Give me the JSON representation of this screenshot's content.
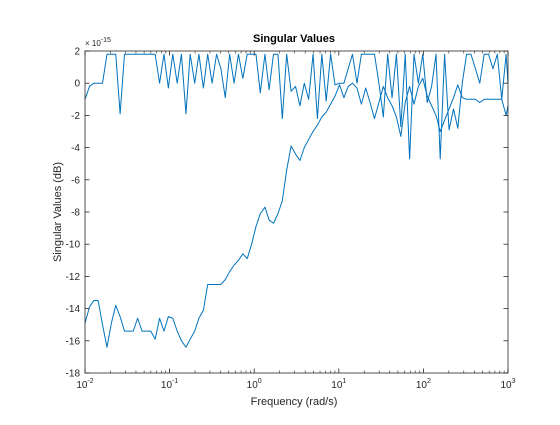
{
  "chart_data": {
    "type": "line",
    "title": "Singular Values",
    "xlabel": "Frequency (rad/s)",
    "ylabel": "Singular Values (dB)",
    "x_scale": "log",
    "xlim": [
      0.01,
      1000
    ],
    "ylim": [
      -18,
      2
    ],
    "y_multiplier_label": "× 10",
    "y_multiplier_exponent": "-15",
    "x_ticks": [
      0.01,
      0.1,
      1,
      10,
      100,
      1000
    ],
    "x_tick_labels": [
      {
        "base": "10",
        "exp": "-2"
      },
      {
        "base": "10",
        "exp": "-1"
      },
      {
        "base": "10",
        "exp": "0"
      },
      {
        "base": "10",
        "exp": "1"
      },
      {
        "base": "10",
        "exp": "2"
      },
      {
        "base": "10",
        "exp": "3"
      }
    ],
    "y_ticks": [
      -18,
      -16,
      -14,
      -12,
      -10,
      -8,
      -6,
      -4,
      -2,
      0,
      2
    ],
    "y_tick_labels": [
      "-18",
      "-16",
      "-14",
      "-12",
      "-10",
      "-8",
      "-6",
      "-4",
      "-2",
      "0",
      "2"
    ],
    "grid": false,
    "line_color": "#0072bd",
    "series": [
      {
        "x": [
          0.01,
          0.0113,
          0.0127,
          0.0143,
          0.0161,
          0.0182,
          0.0205,
          0.0231,
          0.026,
          0.0293,
          0.033,
          0.0372,
          0.0419,
          0.0472,
          0.0532,
          0.0599,
          0.0675,
          0.0761,
          0.0858,
          0.0966,
          0.109,
          0.123,
          0.138,
          0.156,
          0.175,
          0.198,
          0.222,
          0.251,
          0.282,
          0.318,
          0.359,
          0.404,
          0.455,
          0.513,
          0.578,
          0.651,
          0.734,
          0.827,
          0.932,
          1.05,
          1.18,
          1.34,
          1.5,
          1.69,
          1.91,
          2.15,
          2.42,
          2.73,
          3.08,
          3.47,
          3.91,
          4.4,
          4.96,
          5.59,
          6.3,
          7.1,
          8.0,
          9.02,
          10.2,
          11.5,
          12.9,
          14.5,
          16.4,
          18.5,
          20.8,
          23.4,
          26.4,
          29.8,
          33.6,
          37.8,
          42.6,
          48.0,
          54.1,
          61.0,
          68.7,
          77.4,
          87.2,
          98.3,
          111,
          125,
          141,
          158,
          178,
          201,
          227,
          255,
          288,
          324,
          365,
          412,
          464,
          523,
          589,
          664,
          748,
          843,
          950,
          1000
        ],
        "y": [
          -14.9,
          -13.9,
          -13.5,
          -13.5,
          -15.0,
          -16.4,
          -14.9,
          -13.8,
          -14.5,
          -15.4,
          -15.4,
          -15.4,
          -14.6,
          -15.4,
          -15.4,
          -15.4,
          -15.9,
          -14.6,
          -15.4,
          -14.5,
          -14.6,
          -15.4,
          -16.0,
          -16.4,
          -15.9,
          -15.4,
          -14.6,
          -14.1,
          -12.5,
          -12.5,
          -12.5,
          -12.5,
          -12.2,
          -11.7,
          -11.3,
          -11.0,
          -10.6,
          -10.9,
          -10.0,
          -8.9,
          -8.1,
          -7.7,
          -8.5,
          -8.7,
          -8.1,
          -7.3,
          -5.4,
          -3.9,
          -4.4,
          -4.8,
          -4.0,
          -3.5,
          -3.0,
          -2.6,
          -2.1,
          -1.8,
          -1.3,
          -0.8,
          -0.1,
          -0.9,
          -0.2,
          0.0,
          -0.3,
          -1.3,
          -0.3,
          -1.2,
          -2.2,
          -1.2,
          -0.2,
          -0.9,
          -1.4,
          -2.1,
          -3.3,
          -1.2,
          -0.2,
          -1.3,
          -0.2,
          0.3,
          -0.8,
          -1.4,
          -2.0,
          -3.0,
          -2.3,
          -1.6,
          -0.9,
          -0.1,
          -0.9,
          -1.0,
          -1.0,
          -1.0,
          -1.2,
          -1.0,
          -1.0,
          -1.0,
          -1.0,
          -1.0,
          -2.0,
          -1.4
        ],
        "name": ""
      },
      {
        "x": [
          0.01,
          0.0113,
          0.0127,
          0.0143,
          0.0161,
          0.0182,
          0.0205,
          0.0231,
          0.026,
          0.0293,
          0.033,
          0.0372,
          0.0419,
          0.0472,
          0.0532,
          0.0599,
          0.0675,
          0.0761,
          0.0858,
          0.0966,
          0.109,
          0.123,
          0.138,
          0.156,
          0.175,
          0.198,
          0.222,
          0.251,
          0.282,
          0.318,
          0.359,
          0.404,
          0.455,
          0.513,
          0.578,
          0.651,
          0.734,
          0.827,
          0.932,
          1.05,
          1.18,
          1.34,
          1.5,
          1.69,
          1.91,
          2.15,
          2.42,
          2.73,
          3.08,
          3.47,
          3.91,
          4.4,
          4.96,
          5.59,
          6.3,
          7.1,
          8.0,
          9.02,
          10.2,
          11.5,
          12.9,
          14.5,
          16.4,
          18.5,
          20.8,
          23.4,
          26.4,
          29.8,
          33.6,
          37.8,
          42.6,
          48.0,
          54.1,
          61.0,
          68.7,
          77.4,
          87.2,
          98.3,
          111,
          125,
          141,
          158,
          178,
          201,
          227,
          255,
          288,
          324,
          365,
          412,
          464,
          523,
          589,
          664,
          748,
          843,
          950,
          1000
        ],
        "y": [
          -1.0,
          -0.2,
          0.0,
          0.0,
          0.0,
          1.8,
          1.8,
          1.8,
          -1.9,
          1.8,
          1.8,
          1.8,
          1.8,
          1.8,
          1.8,
          1.8,
          1.8,
          0.0,
          1.8,
          -0.3,
          1.8,
          0.0,
          1.8,
          -1.9,
          1.8,
          0.0,
          1.8,
          -0.3,
          1.8,
          0.0,
          1.8,
          0.9,
          -0.9,
          1.8,
          0.0,
          1.8,
          0.3,
          1.8,
          1.8,
          1.8,
          -0.6,
          1.8,
          -0.4,
          1.8,
          1.8,
          -2.2,
          1.8,
          -0.5,
          -0.2,
          -1.4,
          0.0,
          -1.0,
          1.8,
          -2.2,
          1.8,
          -1.1,
          1.8,
          -0.1,
          0.0,
          0.0,
          0.9,
          1.8,
          0.0,
          1.8,
          1.8,
          1.8,
          1.8,
          0.0,
          -2.1,
          1.8,
          -0.9,
          1.8,
          -2.7,
          1.8,
          -4.7,
          1.8,
          0.0,
          1.8,
          -1.2,
          -0.2,
          1.8,
          -4.7,
          1.8,
          -2.9,
          -1.6,
          -2.8,
          0.0,
          1.8,
          1.8,
          0.9,
          0.0,
          1.8,
          1.8,
          0.9,
          1.8,
          -1.0,
          1.8,
          0.0
        ],
        "name": ""
      }
    ]
  }
}
